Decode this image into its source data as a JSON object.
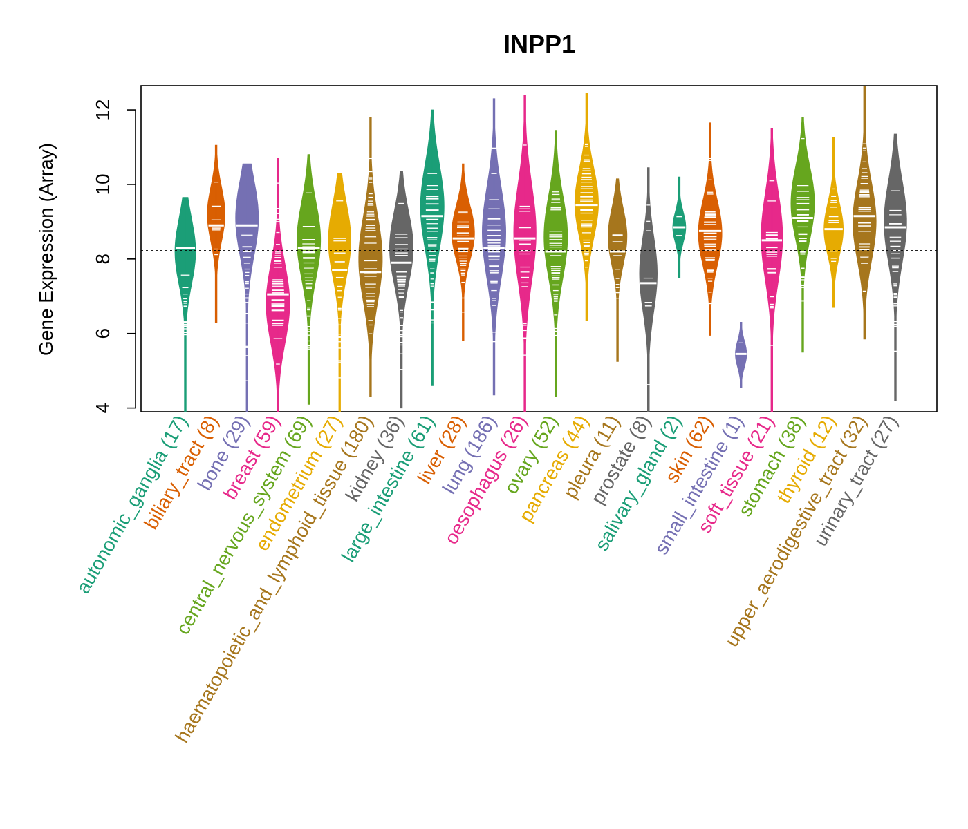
{
  "chart_data": {
    "type": "violin",
    "title": "INPP1",
    "xlabel": "",
    "ylabel": "Gene Expression (Array)",
    "ylim": [
      3.9,
      12.65
    ],
    "yticks": [
      4,
      6,
      8,
      10,
      12
    ],
    "reference_line": 8.22,
    "categories": [
      {
        "name": "autonomic_ganglia",
        "n": 17,
        "count_label": "(17)",
        "color": "#1B9E77",
        "min": 3.9,
        "max": 9.65,
        "median": 8.3,
        "mode_at": 8.2
      },
      {
        "name": "biliary_tract",
        "n": 8,
        "count_label": "(8)",
        "color": "#D95F02",
        "min": 6.3,
        "max": 11.05,
        "median": 8.9,
        "mode_at": 9.2
      },
      {
        "name": "bone",
        "n": 29,
        "count_label": "(29)",
        "color": "#7570B3",
        "min": 3.9,
        "max": 10.55,
        "median": 8.9,
        "mode_at": 9.1
      },
      {
        "name": "breast",
        "n": 59,
        "count_label": "(59)",
        "color": "#E7298A",
        "min": 3.9,
        "max": 10.7,
        "median": 7.05,
        "mode_at": 6.8
      },
      {
        "name": "central_nervous_system",
        "n": 69,
        "count_label": "(69)",
        "color": "#66A61E",
        "min": 4.1,
        "max": 10.8,
        "median": 8.3,
        "mode_at": 8.5
      },
      {
        "name": "endometrium",
        "n": 27,
        "count_label": "(27)",
        "color": "#E6AB02",
        "min": 3.9,
        "max": 10.3,
        "median": 7.7,
        "mode_at": 8.5
      },
      {
        "name": "haematopoietic_and_lymphoid_tissue",
        "n": 180,
        "count_label": "(180)",
        "color": "#A6761D",
        "min": 4.3,
        "max": 11.8,
        "median": 7.65,
        "mode_at": 8.0
      },
      {
        "name": "kidney",
        "n": 36,
        "count_label": "(36)",
        "color": "#666666",
        "min": 4.0,
        "max": 10.35,
        "median": 7.9,
        "mode_at": 8.3
      },
      {
        "name": "large_intestine",
        "n": 61,
        "count_label": "(61)",
        "color": "#1B9E77",
        "min": 4.6,
        "max": 12.0,
        "median": 9.15,
        "mode_at": 9.4
      },
      {
        "name": "liver",
        "n": 28,
        "count_label": "(28)",
        "color": "#D95F02",
        "min": 5.8,
        "max": 10.55,
        "median": 8.55,
        "mode_at": 8.7
      },
      {
        "name": "lung",
        "n": 186,
        "count_label": "(186)",
        "color": "#7570B3",
        "min": 4.35,
        "max": 12.3,
        "median": 8.3,
        "mode_at": 8.7
      },
      {
        "name": "oesophagus",
        "n": 26,
        "count_label": "(26)",
        "color": "#E7298A",
        "min": 3.9,
        "max": 12.4,
        "median": 8.55,
        "mode_at": 8.7
      },
      {
        "name": "ovary",
        "n": 52,
        "count_label": "(52)",
        "color": "#66A61E",
        "min": 4.3,
        "max": 11.45,
        "median": 8.2,
        "mode_at": 8.6
      },
      {
        "name": "pancreas",
        "n": 44,
        "count_label": "(44)",
        "color": "#E6AB02",
        "min": 6.35,
        "max": 12.45,
        "median": 9.45,
        "mode_at": 9.5
      },
      {
        "name": "pleura",
        "n": 11,
        "count_label": "(11)",
        "color": "#A6761D",
        "min": 5.25,
        "max": 10.15,
        "median": 8.2,
        "mode_at": 8.6
      },
      {
        "name": "prostate",
        "n": 8,
        "count_label": "(8)",
        "color": "#666666",
        "min": 3.9,
        "max": 10.45,
        "median": 7.35,
        "mode_at": 7.6
      },
      {
        "name": "salivary_gland",
        "n": 2,
        "count_label": "(2)",
        "color": "#1B9E77",
        "min": 7.5,
        "max": 10.2,
        "median": 8.85,
        "mode_at": 8.85
      },
      {
        "name": "skin",
        "n": 62,
        "count_label": "(62)",
        "color": "#D95F02",
        "min": 5.95,
        "max": 11.65,
        "median": 8.75,
        "mode_at": 8.7
      },
      {
        "name": "small_intestine",
        "n": 1,
        "count_label": "(1)",
        "color": "#7570B3",
        "min": 4.55,
        "max": 6.3,
        "median": 5.45,
        "mode_at": 5.45
      },
      {
        "name": "soft_tissue",
        "n": 21,
        "count_label": "(21)",
        "color": "#E7298A",
        "min": 3.9,
        "max": 11.5,
        "median": 8.5,
        "mode_at": 8.6
      },
      {
        "name": "stomach",
        "n": 38,
        "count_label": "(38)",
        "color": "#66A61E",
        "min": 5.5,
        "max": 11.8,
        "median": 9.1,
        "mode_at": 9.5
      },
      {
        "name": "thyroid",
        "n": 12,
        "count_label": "(12)",
        "color": "#E6AB02",
        "min": 6.7,
        "max": 11.25,
        "median": 8.8,
        "mode_at": 8.8
      },
      {
        "name": "upper_aerodigestive_tract",
        "n": 32,
        "count_label": "(32)",
        "color": "#A6761D",
        "min": 5.85,
        "max": 12.65,
        "median": 9.15,
        "mode_at": 9.0
      },
      {
        "name": "urinary_tract",
        "n": 27,
        "count_label": "(27)",
        "color": "#666666",
        "min": 4.2,
        "max": 11.35,
        "median": 8.85,
        "mode_at": 9.0
      }
    ]
  }
}
